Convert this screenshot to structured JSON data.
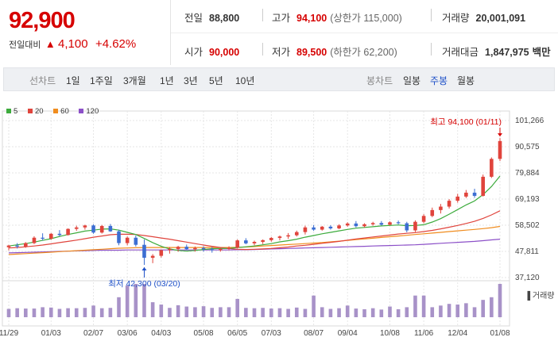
{
  "summary": {
    "price": "92,900",
    "change_label": "전일대비",
    "change_symbol": "▲",
    "change_value": "4,100",
    "change_pct": "+4.62%",
    "prev_close_label": "전일",
    "prev_close": "88,800",
    "high_label": "고가",
    "high": "94,100",
    "upper_limit": "(상한가 115,000)",
    "volume_label": "거래량",
    "volume": "20,001,091",
    "open_label": "시가",
    "open": "90,000",
    "low_label": "저가",
    "low": "89,500",
    "lower_limit": "(하한가 62,200)",
    "amount_label": "거래대금",
    "amount": "1,847,975",
    "amount_unit": "백만"
  },
  "toolbar": {
    "line_label": "선차트",
    "line_periods": [
      "1일",
      "1주일",
      "3개월",
      "1년",
      "3년",
      "5년",
      "10년"
    ],
    "candle_label": "봉차트",
    "candle_periods": [
      "일봉",
      "주봉",
      "월봉"
    ],
    "active_candle": "주봉"
  },
  "chart_data": {
    "type": "candlestick",
    "legend": [
      "5",
      "20",
      "60",
      "120"
    ],
    "legend_colors": [
      "#3cab3c",
      "#e0443c",
      "#f08c1e",
      "#8c50c8"
    ],
    "up_color": "#e0443c",
    "down_color": "#3c6ed2",
    "y_ticks": [
      "101,266",
      "90,575",
      "79,884",
      "69,193",
      "58,502",
      "47,811",
      "37,120"
    ],
    "y_tick_values": [
      101266,
      90575,
      79884,
      69193,
      58502,
      47811,
      37120
    ],
    "ylim": [
      37120,
      101266
    ],
    "x_labels": [
      "11/29",
      "01/03",
      "02/07",
      "03/06",
      "04/03",
      "05/08",
      "06/05",
      "07/03",
      "08/07",
      "09/04",
      "10/08",
      "11/06",
      "12/04",
      "01/08"
    ],
    "x_label_index": [
      0,
      5,
      10,
      14,
      18,
      23,
      27,
      31,
      36,
      40,
      45,
      49,
      53,
      58
    ],
    "volume_label": "거래량",
    "high_annotation": "최고 94,100 (01/11)",
    "low_annotation": "최저 42,300 (03/20)",
    "high_index": 58,
    "low_index": 16,
    "candles": [
      [
        49500,
        50500,
        48200,
        50200
      ],
      [
        50200,
        51200,
        49000,
        49800
      ],
      [
        49800,
        51600,
        49300,
        51200
      ],
      [
        51200,
        54000,
        50800,
        53400
      ],
      [
        53400,
        55200,
        52300,
        53000
      ],
      [
        53000,
        55300,
        52500,
        55000
      ],
      [
        55000,
        56500,
        54000,
        54500
      ],
      [
        54500,
        57200,
        54300,
        57000
      ],
      [
        57000,
        58300,
        56200,
        57600
      ],
      [
        57600,
        58700,
        56700,
        58400
      ],
      [
        58400,
        58900,
        55000,
        55500
      ],
      [
        55500,
        58600,
        55100,
        58200
      ],
      [
        58200,
        59000,
        55800,
        56000
      ],
      [
        56000,
        56700,
        50300,
        51200
      ],
      [
        51200,
        53900,
        50300,
        53400
      ],
      [
        53400,
        54300,
        49800,
        50500
      ],
      [
        50500,
        52700,
        42300,
        45200
      ],
      [
        45200,
        46700,
        43000,
        46000
      ],
      [
        46000,
        48600,
        45300,
        48300
      ],
      [
        48300,
        49600,
        46900,
        48800
      ],
      [
        48800,
        50100,
        47700,
        49700
      ],
      [
        49700,
        50600,
        48300,
        48700
      ],
      [
        48700,
        49800,
        47700,
        49200
      ],
      [
        49200,
        49900,
        47700,
        48700
      ],
      [
        48700,
        49600,
        47300,
        48300
      ],
      [
        48300,
        49300,
        47700,
        48800
      ],
      [
        48800,
        49900,
        48300,
        49300
      ],
      [
        49300,
        52700,
        49000,
        52300
      ],
      [
        52300,
        53200,
        50700,
        51100
      ],
      [
        51100,
        52200,
        50300,
        51700
      ],
      [
        51700,
        52700,
        50800,
        52400
      ],
      [
        52400,
        53700,
        51800,
        53300
      ],
      [
        53300,
        54300,
        52300,
        53900
      ],
      [
        53900,
        55300,
        52900,
        54400
      ],
      [
        54400,
        56300,
        53900,
        55700
      ],
      [
        55700,
        58300,
        54700,
        57600
      ],
      [
        57600,
        58600,
        56200,
        56700
      ],
      [
        56700,
        58200,
        56300,
        57900
      ],
      [
        57900,
        58500,
        56700,
        57200
      ],
      [
        57200,
        58900,
        56900,
        58400
      ],
      [
        58400,
        59700,
        57900,
        59200
      ],
      [
        59200,
        60200,
        57600,
        58100
      ],
      [
        58100,
        59300,
        57600,
        58900
      ],
      [
        58900,
        59900,
        58300,
        59400
      ],
      [
        59400,
        60200,
        58400,
        58700
      ],
      [
        58700,
        60100,
        58400,
        59700
      ],
      [
        59700,
        60400,
        58900,
        59300
      ],
      [
        59300,
        59900,
        55600,
        56400
      ],
      [
        56400,
        60500,
        55700,
        59900
      ],
      [
        59900,
        63000,
        59300,
        62300
      ],
      [
        62300,
        65700,
        61800,
        64700
      ],
      [
        64700,
        67200,
        63300,
        66100
      ],
      [
        66100,
        69200,
        65300,
        68500
      ],
      [
        68500,
        71300,
        67700,
        70200
      ],
      [
        70200,
        72900,
        69600,
        71800
      ],
      [
        71800,
        73400,
        69700,
        70500
      ],
      [
        70500,
        79200,
        70200,
        78300
      ],
      [
        78300,
        86200,
        77800,
        85600
      ],
      [
        85600,
        94100,
        84700,
        92900
      ]
    ],
    "ma": {
      "5": [
        50000,
        50500,
        51000,
        51600,
        52300,
        53000,
        53900,
        54700,
        55400,
        56100,
        56500,
        56900,
        57000,
        56500,
        55600,
        54700,
        53100,
        51400,
        49900,
        48800,
        48200,
        47900,
        48200,
        48600,
        48900,
        49000,
        49000,
        49400,
        49700,
        50000,
        50500,
        51000,
        51700,
        52200,
        52800,
        53600,
        54300,
        55000,
        55600,
        56200,
        56800,
        57300,
        57600,
        57900,
        58200,
        58400,
        58600,
        58300,
        58400,
        58700,
        59800,
        61200,
        63000,
        64900,
        66800,
        68400,
        71000,
        74300,
        78600
      ],
      "20": [
        49200,
        49400,
        49700,
        50000,
        50400,
        50900,
        51400,
        51900,
        52400,
        53000,
        53600,
        54100,
        54600,
        54800,
        54800,
        54700,
        54300,
        53800,
        53300,
        52800,
        52200,
        51600,
        51000,
        50400,
        49900,
        49400,
        49000,
        48700,
        48600,
        48700,
        48800,
        49000,
        49300,
        49600,
        50000,
        50300,
        50700,
        51100,
        51500,
        51900,
        52400,
        52900,
        53300,
        53700,
        54100,
        54500,
        54900,
        55200,
        55500,
        55900,
        56400,
        57000,
        57700,
        58400,
        59200,
        60100,
        61300,
        62700,
        64400
      ],
      "60": [
        46500,
        46700,
        46900,
        47100,
        47300,
        47500,
        47700,
        47900,
        48100,
        48300,
        48500,
        48700,
        48900,
        49100,
        49200,
        49300,
        49400,
        49400,
        49400,
        49400,
        49400,
        49400,
        49400,
        49400,
        49400,
        49400,
        49400,
        49500,
        49600,
        49800,
        50000,
        50200,
        50400,
        50600,
        50800,
        51000,
        51200,
        51400,
        51700,
        52000,
        52300,
        52600,
        52900,
        53200,
        53500,
        53800,
        54100,
        54400,
        54700,
        55000,
        55300,
        55600,
        55900,
        56200,
        56500,
        56800,
        57100,
        57500,
        58000
      ],
      "120": [
        47200,
        47300,
        47400,
        47500,
        47600,
        47700,
        47800,
        47900,
        48000,
        48100,
        48200,
        48300,
        48300,
        48300,
        48400,
        48400,
        48400,
        48400,
        48400,
        48400,
        48400,
        48400,
        48400,
        48400,
        48400,
        48400,
        48400,
        48500,
        48500,
        48600,
        48700,
        48800,
        48900,
        49000,
        49100,
        49200,
        49300,
        49400,
        49500,
        49600,
        49700,
        49800,
        49900,
        50000,
        50100,
        50200,
        50300,
        50400,
        50500,
        50700,
        50900,
        51100,
        51300,
        51500,
        51700,
        51900,
        52200,
        52500,
        52800
      ]
    },
    "volumes": [
      25,
      27,
      26,
      26,
      30,
      29,
      25,
      27,
      27,
      28,
      35,
      27,
      28,
      60,
      95,
      100,
      100,
      45,
      38,
      28,
      36,
      32,
      30,
      33,
      28,
      30,
      30,
      55,
      28,
      27,
      28,
      26,
      27,
      25,
      29,
      25,
      65,
      30,
      25,
      27,
      35,
      26,
      24,
      27,
      23,
      32,
      24,
      30,
      65,
      65,
      30,
      35,
      40,
      38,
      42,
      30,
      52,
      60,
      100
    ],
    "volume_up": [
      true,
      false,
      true,
      true,
      false,
      true,
      false,
      true,
      true,
      true,
      false,
      true,
      false,
      false,
      true,
      false,
      false,
      true,
      true,
      true,
      true,
      false,
      true,
      false,
      false,
      true,
      true,
      true,
      false,
      true,
      true,
      true,
      true,
      true,
      true,
      true,
      false,
      true,
      false,
      true,
      true,
      false,
      true,
      true,
      false,
      true,
      false,
      false,
      true,
      true,
      true,
      true,
      true,
      true,
      true,
      false,
      true,
      true,
      true
    ]
  }
}
